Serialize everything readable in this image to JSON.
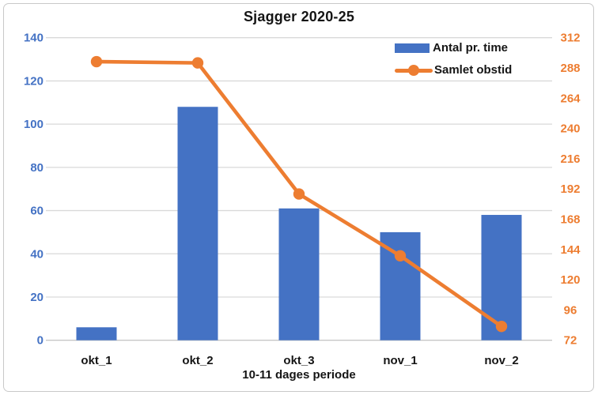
{
  "chart": {
    "border_color": "#C9C9C9",
    "background": "#FFFFFF"
  },
  "chart_data": {
    "type": "combo",
    "title": "Sjagger 2020-25",
    "xlabel": "10-11 dages periode",
    "ylabel_left": "",
    "ylabel_right": "",
    "categories": [
      "okt_1",
      "okt_2",
      "okt_3",
      "nov_1",
      "nov_2"
    ],
    "series": [
      {
        "name": "Antal pr. time",
        "type": "bar",
        "axis": "left",
        "color": "#4472C4",
        "values": [
          6,
          108,
          61,
          50,
          58
        ]
      },
      {
        "name": "Samlet obstid",
        "type": "line",
        "axis": "right",
        "color": "#ED7D31",
        "values": [
          293,
          292,
          188,
          139,
          83
        ]
      }
    ],
    "left_axis": {
      "min": 0,
      "max": 140,
      "step": 20,
      "color": "#4472C4"
    },
    "right_axis": {
      "min": 72,
      "max": 312,
      "step": 24,
      "color": "#ED7D31"
    },
    "grid": true,
    "gridline_color": "#D9D9D9",
    "baseline_color": "#C6C6C6",
    "legend_position": "top-right",
    "category_label_color": "#151515"
  }
}
